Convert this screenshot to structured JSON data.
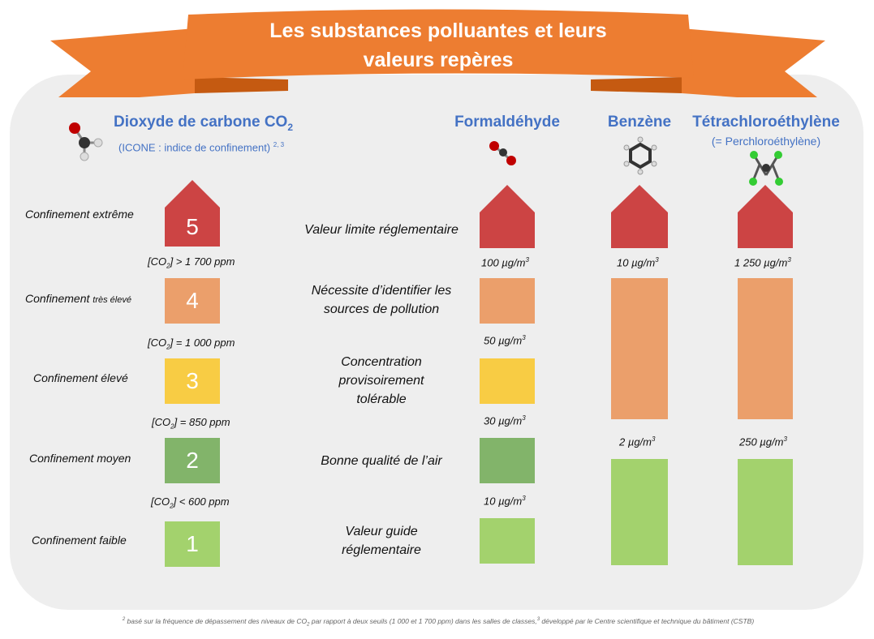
{
  "title": "Les substances polluantes et leurs\nvaleurs repères",
  "colors": {
    "ribbon": "#ed7d31",
    "ribbon_dark": "#c55a11",
    "heading_blue": "#4472c4",
    "level5": "#cc4444",
    "level4": "#eb9f6b",
    "level3": "#f8cc44",
    "level2": "#82b46a",
    "level1": "#a3d26d",
    "panel": "#eeeeee"
  },
  "co2": {
    "heading": "Dioxyde de carbone CO",
    "heading_sub": "2",
    "subtitle": "(ICONE : indice de confinement)",
    "subtitle_sup": "2, 3",
    "molecule_icon": "co2-molecule-icon",
    "levels": [
      {
        "number": "5",
        "label": "Confinement extrême",
        "label_small": ""
      },
      {
        "number": "4",
        "label": "Confinement ",
        "label_small": "très élevé"
      },
      {
        "number": "3",
        "label": "Confinement élevé",
        "label_small": ""
      },
      {
        "number": "2",
        "label": "Confinement moyen",
        "label_small": ""
      },
      {
        "number": "1",
        "label": "Confinement faible",
        "label_small": ""
      }
    ],
    "thresholds": [
      {
        "pre": "[CO",
        "sub": "2",
        "post": "] > 1 700 ppm"
      },
      {
        "pre": "[CO",
        "sub": "2",
        "post": "] = 1 000 ppm"
      },
      {
        "pre": "[CO",
        "sub": "2",
        "post": "] = 850 ppm"
      },
      {
        "pre": "[CO",
        "sub": "2",
        "post": "] < 600 ppm"
      }
    ]
  },
  "categories": [
    "Valeur limite réglementaire",
    "Nécessite d’identifier les\nsources de pollution",
    "Concentration\nprovisoirement\ntolérable",
    "Bonne qualité de l’air",
    "Valeur guide\nréglementaire"
  ],
  "formaldehyde": {
    "heading": "Formaldéhyde",
    "molecule_icon": "formaldehyde-molecule-icon",
    "thresholds": [
      {
        "value": "100 µg/m",
        "sup": "3"
      },
      {
        "value": "50 µg/m",
        "sup": "3"
      },
      {
        "value": "30 µg/m",
        "sup": "3"
      },
      {
        "value": "10 µg/m",
        "sup": "3"
      }
    ]
  },
  "benzene": {
    "heading": "Benzène",
    "molecule_icon": "benzene-molecule-icon",
    "thresholds": [
      {
        "value": "10 µg/m",
        "sup": "3"
      },
      {
        "value": "2 µg/m",
        "sup": "3"
      }
    ]
  },
  "tetra": {
    "heading": "Tétrachloroéthylène",
    "subtitle": "(= Perchloroéthylène)",
    "molecule_icon": "tetrachloroethylene-molecule-icon",
    "thresholds": [
      {
        "value": "1 250 µg/m",
        "sup": "3"
      },
      {
        "value": "250 µg/m",
        "sup": "3"
      }
    ]
  },
  "footnote": {
    "sup1": "2",
    "part1": " basé sur la fréquence de dépassement des niveaux de CO",
    "sub1": "2",
    "part2": " par rapport à deux seuils (1 000 et 1 700 ppm) dans les salles de classes,",
    "sup2": "3",
    "part3": " développé par le Centre scientifique et technique du bâtiment (CSTB)"
  }
}
